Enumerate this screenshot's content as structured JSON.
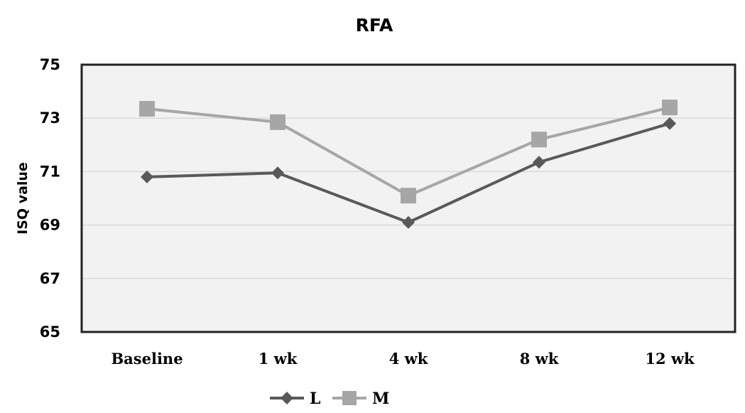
{
  "chart_data": {
    "type": "line",
    "title": "RFA",
    "xlabel": "",
    "ylabel": "ISQ value",
    "categories": [
      "Baseline",
      "1 wk",
      "4 wk",
      "8 wk",
      "12 wk"
    ],
    "ylim": [
      65,
      75
    ],
    "yticks": [
      "65",
      "67",
      "69",
      "71",
      "73",
      "75"
    ],
    "grid": true,
    "legend_position": "bottom",
    "series": [
      {
        "name": "L",
        "values": [
          70.8,
          70.95,
          69.1,
          71.35,
          72.8
        ],
        "color": "#595959",
        "marker": "diamond"
      },
      {
        "name": "M",
        "values": [
          73.35,
          72.85,
          70.1,
          72.2,
          73.4
        ],
        "color": "#a6a6a6",
        "marker": "square"
      }
    ]
  }
}
